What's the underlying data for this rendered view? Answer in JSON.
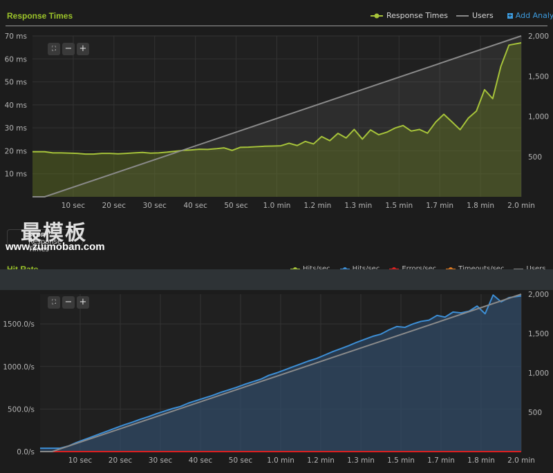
{
  "response_times": {
    "title": "Response Times",
    "legend": [
      {
        "name": "Response Times",
        "color": "#a7c43a"
      },
      {
        "name": "Users",
        "color": "#8a8a8a"
      }
    ],
    "add_analytics": "Add Analytics"
  },
  "hit_rate": {
    "title": "Hit Rate",
    "legend": [
      {
        "name": "Hits/sec",
        "color": "#a7c43a"
      },
      {
        "name": "Hits/sec",
        "color": "#3d8fd6"
      },
      {
        "name": "Errors/sec",
        "color": "#e02020"
      },
      {
        "name": "Timeouts/sec",
        "color": "#e07a20"
      },
      {
        "name": "Users",
        "color": "#8a8a8a"
      }
    ]
  },
  "overlay": {
    "stop_label": "STOP",
    "series_toggle_label": "Response Times",
    "watermark": "最模板",
    "watermark_url": "www.zuimoban.com"
  },
  "zoom": {
    "reset_icon": "⛶",
    "minus": "−",
    "plus": "+"
  },
  "chart_data": [
    {
      "type": "area",
      "title": "Response Times",
      "x_tick_labels": [
        "10 sec",
        "20 sec",
        "30 sec",
        "40 sec",
        "50 sec",
        "1.0 min",
        "1.2 min",
        "1.3 min",
        "1.5 min",
        "1.7 min",
        "1.8 min",
        "2.0 min"
      ],
      "x_range_sec": [
        0,
        120
      ],
      "y_left": {
        "ticks": [
          "10 ms",
          "20 ms",
          "30 ms",
          "40 ms",
          "50 ms",
          "60 ms",
          "70 ms"
        ],
        "range": [
          0,
          70
        ]
      },
      "y_right": {
        "ticks": [
          "500",
          "1,000",
          "1,500",
          "2,000"
        ],
        "range": [
          0,
          2000
        ]
      },
      "grid": true,
      "series": [
        {
          "name": "Response Times",
          "axis": "left",
          "color": "#a7c43a",
          "x": [
            0,
            3,
            5,
            7,
            9,
            11,
            13,
            15,
            17,
            19,
            21,
            23,
            25,
            27,
            29,
            31,
            33,
            35,
            37,
            39,
            41,
            43,
            45,
            47,
            49,
            51,
            53,
            55,
            57,
            59,
            61,
            63,
            65,
            67,
            69,
            71,
            73,
            75,
            77,
            79,
            81,
            83,
            85,
            87,
            89,
            91,
            93,
            95,
            97,
            99,
            101,
            103,
            105,
            107,
            109,
            111,
            113,
            115,
            117,
            120
          ],
          "y": [
            19.6,
            19.6,
            19.1,
            19.1,
            19.0,
            18.9,
            18.6,
            18.6,
            18.9,
            18.9,
            18.7,
            18.9,
            19.1,
            19.3,
            19.0,
            19.1,
            19.4,
            19.8,
            20.2,
            20.4,
            20.7,
            20.6,
            20.9,
            21.3,
            20.2,
            21.5,
            21.6,
            21.8,
            22.0,
            22.1,
            22.2,
            23.3,
            22.3,
            24.1,
            23.0,
            26.2,
            24.4,
            27.6,
            25.6,
            29.3,
            25.1,
            29.1,
            27.0,
            28.1,
            29.9,
            31.0,
            28.6,
            29.3,
            27.7,
            32.5,
            35.9,
            32.6,
            29.2,
            34.2,
            37.3,
            46.6,
            42.7,
            56.7,
            66.0,
            67.0
          ]
        },
        {
          "name": "Users",
          "axis": "right",
          "color": "#8a8a8a",
          "x": [
            0,
            3,
            120
          ],
          "y": [
            0,
            0,
            2000
          ]
        }
      ]
    },
    {
      "type": "area",
      "title": "Hit Rate",
      "x_tick_labels": [
        "10 sec",
        "20 sec",
        "30 sec",
        "40 sec",
        "50 sec",
        "1.0 min",
        "1.2 min",
        "1.3 min",
        "1.5 min",
        "1.7 min",
        "1.8 min",
        "2.0 min"
      ],
      "x_range_sec": [
        0,
        120
      ],
      "y_left": {
        "ticks": [
          "0.0/s",
          "500.0/s",
          "1000.0/s",
          "1500.0/s"
        ],
        "range": [
          0,
          1850
        ]
      },
      "y_right": {
        "ticks": [
          "500",
          "1,000",
          "1,500",
          "2,000"
        ],
        "range": [
          0,
          2000
        ]
      },
      "grid": true,
      "series": [
        {
          "name": "Hits/sec",
          "axis": "left",
          "color": "#3d8fd6",
          "x": [
            0,
            3,
            5,
            7,
            9,
            11,
            13,
            15,
            17,
            19,
            21,
            23,
            25,
            27,
            29,
            31,
            33,
            35,
            37,
            39,
            41,
            43,
            45,
            47,
            49,
            51,
            53,
            55,
            57,
            59,
            61,
            63,
            65,
            67,
            69,
            71,
            73,
            75,
            77,
            79,
            81,
            83,
            85,
            87,
            89,
            91,
            93,
            95,
            97,
            99,
            101,
            103,
            105,
            107,
            109,
            111,
            113,
            115,
            117,
            120
          ],
          "y": [
            40,
            40,
            40,
            65,
            105,
            140,
            175,
            210,
            245,
            280,
            315,
            345,
            380,
            410,
            445,
            475,
            505,
            530,
            570,
            600,
            630,
            660,
            695,
            725,
            755,
            790,
            820,
            850,
            895,
            925,
            960,
            995,
            1030,
            1065,
            1095,
            1135,
            1175,
            1210,
            1245,
            1285,
            1320,
            1355,
            1380,
            1430,
            1470,
            1460,
            1500,
            1530,
            1545,
            1600,
            1580,
            1640,
            1630,
            1650,
            1710,
            1620,
            1840,
            1760,
            1810,
            1830
          ]
        },
        {
          "name": "Errors/sec",
          "axis": "left",
          "color": "#e02020",
          "x": [
            0,
            120
          ],
          "y": [
            0,
            0
          ]
        },
        {
          "name": "Users",
          "axis": "right",
          "color": "#8a8a8a",
          "x": [
            0,
            3,
            120
          ],
          "y": [
            0,
            0,
            2000
          ]
        }
      ]
    }
  ]
}
